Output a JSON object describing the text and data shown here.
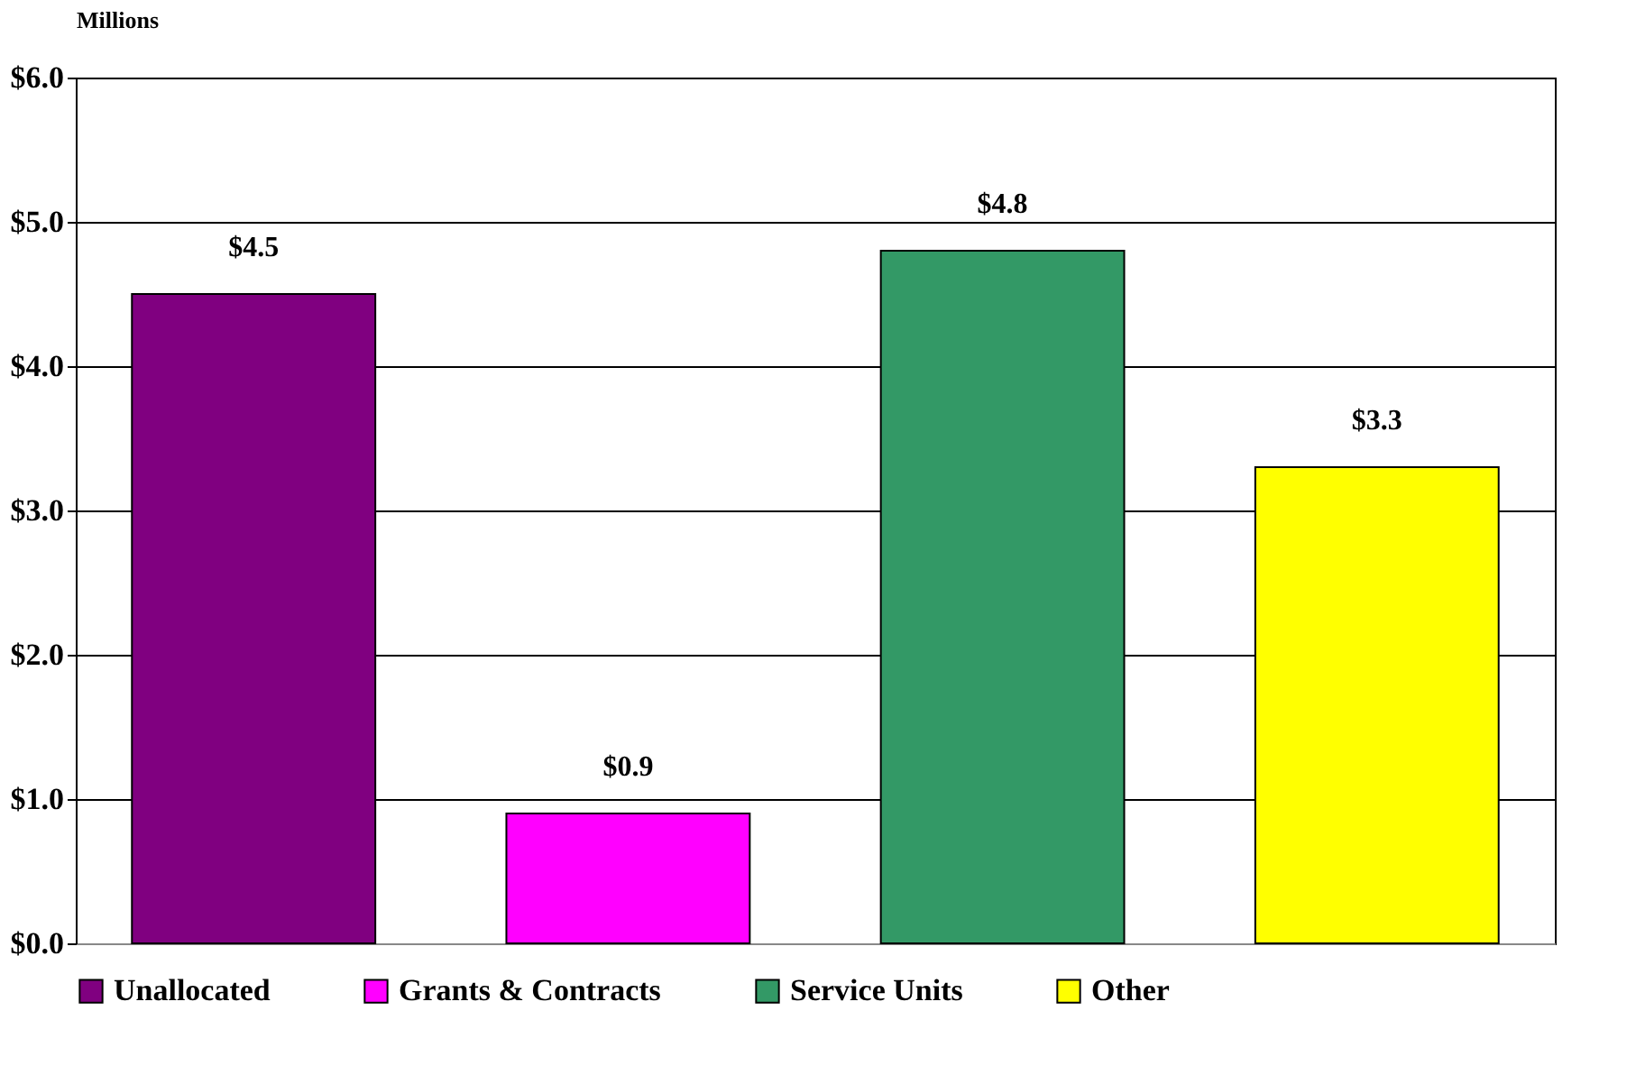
{
  "chart_data": {
    "type": "bar",
    "ylabel": "Millions",
    "categories": [
      null
    ],
    "series": [
      {
        "name": "Unallocated",
        "color": "#800080",
        "values": [
          4.5
        ],
        "value_labels": [
          "$4.5"
        ]
      },
      {
        "name": "Grants & Contracts",
        "color": "#ff00ff",
        "values": [
          0.9
        ],
        "value_labels": [
          "$0.9"
        ]
      },
      {
        "name": "Service Units",
        "color": "#339966",
        "values": [
          4.8
        ],
        "value_labels": [
          "$4.8"
        ]
      },
      {
        "name": "Other",
        "color": "#ffff00",
        "values": [
          3.3
        ],
        "value_labels": [
          "$3.3"
        ]
      }
    ],
    "ylim": [
      0,
      6
    ],
    "yticks": [
      {
        "value": 0,
        "label": "$0.0"
      },
      {
        "value": 1,
        "label": "$1.0"
      },
      {
        "value": 2,
        "label": "$2.0"
      },
      {
        "value": 3,
        "label": "$3.0"
      },
      {
        "value": 4,
        "label": "$4.0"
      },
      {
        "value": 5,
        "label": "$5.0"
      },
      {
        "value": 6,
        "label": "$6.0"
      }
    ],
    "grid": "y",
    "legend": "bottom"
  }
}
